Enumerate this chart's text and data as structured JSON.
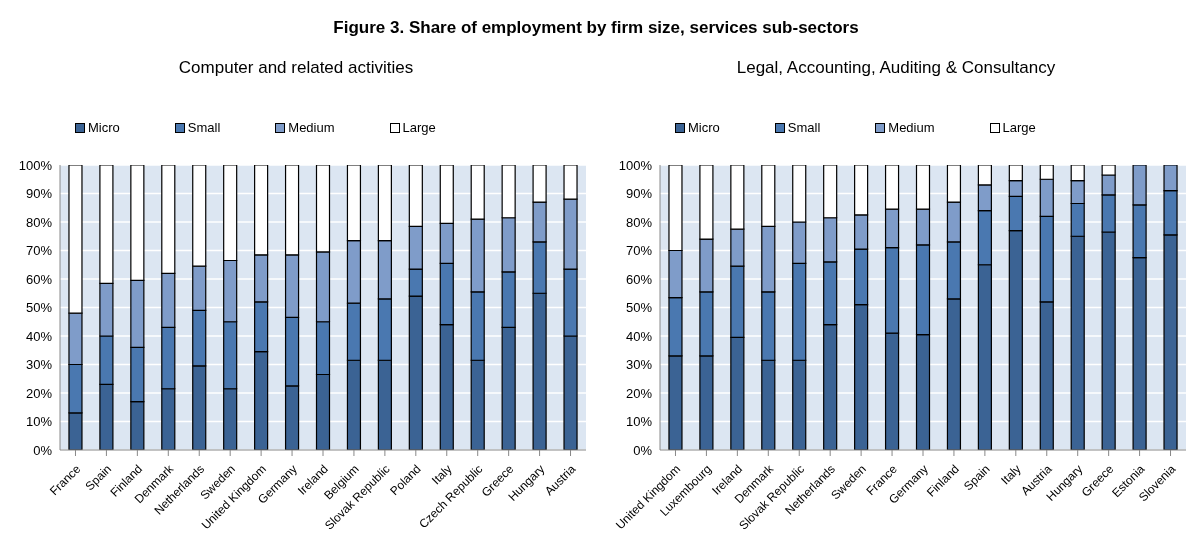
{
  "chart_data": [
    {
      "type": "bar",
      "title": "Figure 3. Share of employment by firm size, services sub-sectors",
      "subtitle": "Computer and related activities",
      "stacked": true,
      "grid": "y",
      "legend": "top",
      "categories": [
        "France",
        "Spain",
        "Finland",
        "Denmark",
        "Netherlands",
        "Sweden",
        "United Kingdom",
        "Germany",
        "Ireland",
        "Belgium",
        "Slovak Republic",
        "Poland",
        "Italy",
        "Czech Republic",
        "Greece",
        "Hungary",
        "Austria"
      ],
      "series": [
        {
          "name": "Micro",
          "color": "#3b6394",
          "values": [
            13,
            23,
            17,
            21.5,
            29.5,
            21.5,
            34.5,
            22.5,
            26.5,
            31.5,
            31.5,
            54,
            44,
            31.5,
            43,
            55,
            40
          ]
        },
        {
          "name": "Small",
          "color": "#4a78b0",
          "values": [
            17,
            17,
            19,
            21.5,
            19.5,
            23.5,
            17.5,
            24,
            18.5,
            20,
            21.5,
            9.5,
            21.5,
            24,
            19.5,
            18,
            23.5
          ]
        },
        {
          "name": "Medium",
          "color": "#7f9cc9",
          "values": [
            18,
            18.5,
            23.5,
            19,
            15.5,
            21.5,
            16.5,
            22,
            24.5,
            22,
            20.5,
            15,
            14,
            25.5,
            19,
            14,
            24.5
          ]
        },
        {
          "name": "Large",
          "color": "#ffffff",
          "values": [
            52,
            41.5,
            40.5,
            38,
            35.5,
            33.5,
            31.5,
            31.5,
            30.5,
            26.5,
            26.5,
            21.5,
            20.5,
            19,
            18.5,
            13,
            12
          ]
        }
      ],
      "ylim": [
        0,
        100
      ],
      "yticks": [
        {
          "value": 0,
          "label": "0%"
        },
        {
          "value": 10,
          "label": "10%"
        },
        {
          "value": 20,
          "label": "20%"
        },
        {
          "value": 30,
          "label": "30%"
        },
        {
          "value": 40,
          "label": "40%"
        },
        {
          "value": 50,
          "label": "50%"
        },
        {
          "value": 60,
          "label": "60%"
        },
        {
          "value": 70,
          "label": "70%"
        },
        {
          "value": 80,
          "label": "80%"
        },
        {
          "value": 90,
          "label": "90%"
        },
        {
          "value": 100,
          "label": "100%"
        }
      ]
    },
    {
      "type": "bar",
      "title": "Legal, Accounting, Auditing & Consultancy",
      "stacked": true,
      "grid": "y",
      "legend": "top",
      "categories": [
        "United Kingdom",
        "Luxembourg",
        "Ireland",
        "Denmark",
        "Slovak Republic",
        "Netherlands",
        "Sweden",
        "France",
        "Germany",
        "Finland",
        "Spain",
        "Italy",
        "Austria",
        "Hungary",
        "Greece",
        "Estonia",
        "Slovenia"
      ],
      "series": [
        {
          "name": "Micro",
          "color": "#3b6394",
          "values": [
            33,
            33,
            39.5,
            31.5,
            31.5,
            44,
            51,
            41,
            40.5,
            53,
            65,
            77,
            52,
            75,
            76.5,
            67.5,
            75.5
          ]
        },
        {
          "name": "Small",
          "color": "#4a78b0",
          "values": [
            20.5,
            22.5,
            25,
            24,
            34,
            22,
            19.5,
            30,
            31.5,
            20,
            19,
            12,
            30,
            11.5,
            13,
            18.5,
            15.5
          ]
        },
        {
          "name": "Medium",
          "color": "#7f9cc9",
          "values": [
            16.5,
            18.5,
            13,
            23,
            14.5,
            15.5,
            12,
            13.5,
            12.5,
            14,
            9,
            5.5,
            13,
            8,
            7,
            14,
            9
          ]
        },
        {
          "name": "Large",
          "color": "#ffffff",
          "values": [
            30,
            26,
            22.5,
            21.5,
            20,
            18.5,
            17.5,
            15.5,
            15.5,
            13,
            7,
            5.5,
            5,
            5.5,
            3.5,
            0,
            0
          ]
        }
      ],
      "ylim": [
        0,
        100
      ],
      "yticks": [
        {
          "value": 0,
          "label": "0%"
        },
        {
          "value": 10,
          "label": "10%"
        },
        {
          "value": 20,
          "label": "20%"
        },
        {
          "value": 30,
          "label": "30%"
        },
        {
          "value": 40,
          "label": "40%"
        },
        {
          "value": 50,
          "label": "50%"
        },
        {
          "value": 60,
          "label": "60%"
        },
        {
          "value": 70,
          "label": "70%"
        },
        {
          "value": 80,
          "label": "80%"
        },
        {
          "value": 90,
          "label": "90%"
        },
        {
          "value": 100,
          "label": "100%"
        }
      ]
    }
  ]
}
